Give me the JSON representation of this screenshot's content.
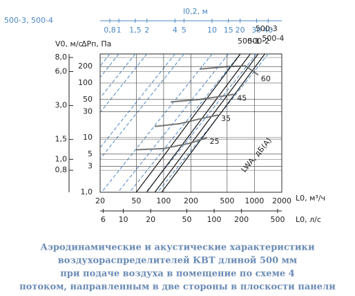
{
  "chart_data": {
    "type": "nomogram",
    "xlabel": "L0, м³/ч",
    "x2label": "L0, л/с",
    "x3label": "l0,2, м",
    "x3note": "500-3, 500-4",
    "ylabel": "ΔPп, Па",
    "y2label": "V0, м/с",
    "annotation": "LWA, дБ(A)",
    "xlim": [
      20,
      2000
    ],
    "xticks": [
      20,
      50,
      100,
      200,
      500,
      1000,
      2000
    ],
    "x2lim": [
      5.556,
      555.6
    ],
    "x2ticks": [
      6,
      10,
      20,
      50,
      100,
      200,
      500
    ],
    "x3lim": [
      0.63,
      56
    ],
    "x3ticks": [
      {
        "value": 0.8,
        "label": "0,8"
      },
      1,
      {
        "value": 1.5,
        "label": "1,5"
      },
      2,
      4,
      5,
      10,
      15,
      20,
      30,
      40
    ],
    "ylim": [
      1,
      340
    ],
    "yticks": [
      {
        "value": 1,
        "label": "1,0"
      },
      3,
      5,
      10,
      30,
      50,
      100,
      200
    ],
    "y2lim": [
      0.51,
      8.6
    ],
    "y2ticks": [
      {
        "value": 0.8,
        "label": "0,8"
      },
      {
        "value": 1,
        "label": "1,0"
      },
      {
        "value": 1.5,
        "label": "1,5"
      },
      {
        "value": 3,
        "label": "3,0"
      },
      {
        "value": 6,
        "label": "6,0"
      },
      {
        "value": 8,
        "label": "8,0"
      }
    ],
    "grid": true,
    "log": true,
    "series": [
      {
        "name": "500-1",
        "color": "#111111",
        "x": [
          50,
          700
        ],
        "values": [
          1,
          340
        ]
      },
      {
        "name": "500-2",
        "color": "#111111",
        "x": [
          65,
          900
        ],
        "values": [
          1,
          340
        ]
      },
      {
        "name": "500-3",
        "color": "#111111",
        "x": [
          80,
          1100
        ],
        "values": [
          1,
          340
        ]
      },
      {
        "name": "500-4",
        "color": "#111111",
        "x": [
          95,
          1300
        ],
        "values": [
          1,
          340
        ]
      }
    ],
    "noise": [
      {
        "name": "25",
        "color": "#777777",
        "x": [
          50,
          100,
          200,
          300
        ],
        "values": [
          6,
          6.3,
          8,
          10
        ]
      },
      {
        "name": "35",
        "color": "#777777",
        "x": [
          80,
          150,
          250,
          400
        ],
        "values": [
          16,
          18,
          22,
          26
        ]
      },
      {
        "name": "45",
        "color": "#777777",
        "x": [
          120,
          250,
          400,
          600
        ],
        "values": [
          45,
          50,
          56,
          62
        ]
      },
      {
        "name": "60",
        "color": "#777777",
        "x": [
          250,
          500,
          800,
          1100
        ],
        "values": [
          180,
          200,
          205,
          140
        ]
      }
    ],
    "caption": [
      "Аэродинамические и акустические характеристики",
      "воздухораспределителей КВТ длиной 500 мм",
      "при подаче воздуха в помещение по схеме 4",
      "потоком, направленным в две стороны в плоскости панели"
    ]
  }
}
